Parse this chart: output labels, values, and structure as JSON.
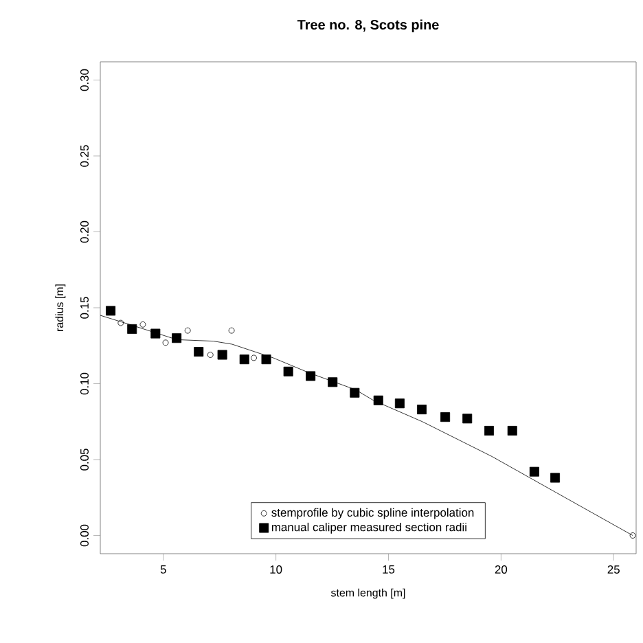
{
  "chart_data": {
    "type": "scatter",
    "title": "Tree no. 8, Scots pine",
    "xlabel": "stem length [m]",
    "ylabel": "radius [m]",
    "xlim": [
      2.2,
      26.0
    ],
    "ylim": [
      -0.012,
      0.312
    ],
    "xticks": [
      5,
      10,
      15,
      20,
      25
    ],
    "yticks": [
      {
        "value": 0,
        "label": "0.00"
      },
      {
        "value": 0.05,
        "label": "0.05"
      },
      {
        "value": 0.1,
        "label": "0.10"
      },
      {
        "value": 0.15,
        "label": "0.15"
      },
      {
        "value": 0.2,
        "label": "0.20"
      },
      {
        "value": 0.25,
        "label": "0.25"
      },
      {
        "value": 0.3,
        "label": "0.30"
      }
    ],
    "legend": "bottom",
    "grid": false,
    "series": [
      {
        "name": "stemprofile by cubic spline interpolation",
        "color": "#000000",
        "marker": "circle",
        "x": [
          3.11,
          4.09,
          5.1,
          6.08,
          7.09,
          8.03,
          9.02,
          25.85
        ],
        "values": [
          0.14,
          0.139,
          0.127,
          0.135,
          0.119,
          0.135,
          0.117,
          0.0
        ]
      },
      {
        "name": "manual caliper measured section radii",
        "color": "#000000",
        "marker": "square",
        "x": [
          2.66,
          3.61,
          4.65,
          5.59,
          6.57,
          7.62,
          8.6,
          9.57,
          10.55,
          11.54,
          12.52,
          13.5,
          14.55,
          15.5,
          16.48,
          17.52,
          18.5,
          19.47,
          20.5,
          21.48,
          22.4
        ],
        "values": [
          0.148,
          0.136,
          0.133,
          0.13,
          0.121,
          0.119,
          0.116,
          0.116,
          0.108,
          0.105,
          0.101,
          0.094,
          0.089,
          0.087,
          0.083,
          0.078,
          0.077,
          0.069,
          0.069,
          0.042,
          0.038
        ]
      },
      {
        "type": "line",
        "color": "#000000",
        "marker": "none",
        "x": [
          2.2,
          3.5,
          5.6,
          7.23,
          8.05,
          9.88,
          11.5,
          13.54,
          14.33,
          16.5,
          19.6,
          22.48,
          25.85
        ],
        "values": [
          0.145,
          0.139,
          0.129,
          0.128,
          0.126,
          0.117,
          0.107,
          0.096,
          0.089,
          0.075,
          0.052,
          0.028,
          0.0
        ]
      }
    ]
  }
}
